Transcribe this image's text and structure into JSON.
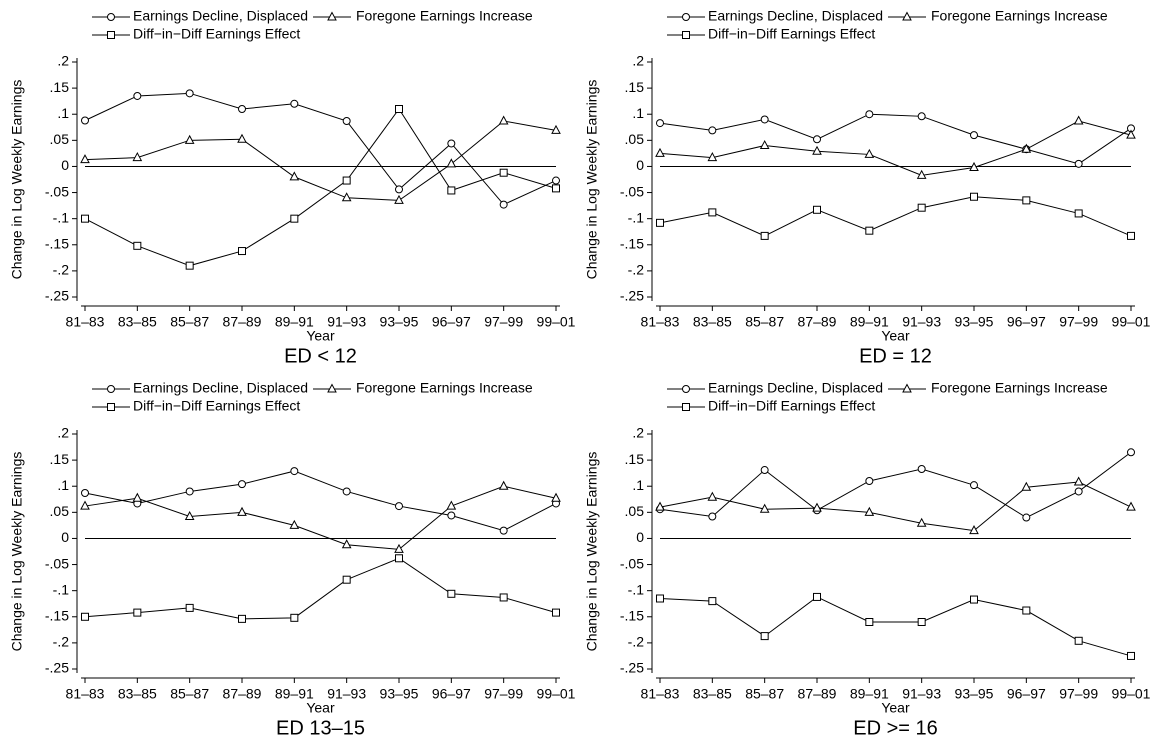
{
  "chart_data": [
    {
      "type": "line",
      "title": "ED < 12",
      "xlabel": "Year",
      "ylabel": "Change in Log Weekly Earnings",
      "categories": [
        "81–83",
        "83–85",
        "85–87",
        "87–89",
        "89–91",
        "91–93",
        "93–95",
        "96–97",
        "97–99",
        "99–01"
      ],
      "ylim": [
        -0.25,
        0.2
      ],
      "yticks": [
        {
          "value": 0.2,
          "label": ".2"
        },
        {
          "value": 0.15,
          "label": ".15"
        },
        {
          "value": 0.1,
          "label": ".1"
        },
        {
          "value": 0.05,
          "label": ".05"
        },
        0,
        {
          "value": -0.05,
          "label": "-.05"
        },
        {
          "value": -0.1,
          "label": "-.1"
        },
        {
          "value": -0.15,
          "label": "-.15"
        },
        {
          "value": -0.2,
          "label": "-.2"
        },
        {
          "value": -0.25,
          "label": "-.25"
        }
      ],
      "reference_line": 0,
      "series": [
        {
          "name": "Earnings Decline, Displaced",
          "color": "#000000",
          "marker": "circle",
          "values": [
            0.088,
            0.135,
            0.14,
            0.11,
            0.12,
            0.087,
            -0.044,
            0.044,
            -0.073,
            -0.027
          ]
        },
        {
          "name": "Foregone Earnings Increase",
          "color": "#000000",
          "marker": "triangle",
          "values": [
            0.013,
            0.017,
            0.05,
            0.052,
            -0.02,
            -0.06,
            -0.065,
            0.005,
            0.087,
            0.069
          ]
        },
        {
          "name": "Diff−in−Diff Earnings Effect",
          "color": "#000000",
          "marker": "square",
          "values": [
            -0.1,
            -0.152,
            -0.19,
            -0.162,
            -0.1,
            -0.027,
            0.11,
            -0.046,
            -0.012,
            -0.042
          ]
        }
      ]
    },
    {
      "type": "line",
      "title": "ED = 12",
      "xlabel": "Year",
      "ylabel": "Change in Log Weekly Earnings",
      "categories": [
        "81–83",
        "83–85",
        "85–87",
        "87–89",
        "89–91",
        "91–93",
        "93–95",
        "96–97",
        "97–99",
        "99–01"
      ],
      "ylim": [
        -0.25,
        0.2
      ],
      "yticks": [
        {
          "value": 0.2,
          "label": ".2"
        },
        {
          "value": 0.15,
          "label": ".15"
        },
        {
          "value": 0.1,
          "label": ".1"
        },
        {
          "value": 0.05,
          "label": ".05"
        },
        0,
        {
          "value": -0.05,
          "label": "-.05"
        },
        {
          "value": -0.1,
          "label": "-.1"
        },
        {
          "value": -0.15,
          "label": "-.15"
        },
        {
          "value": -0.2,
          "label": "-.2"
        },
        {
          "value": -0.25,
          "label": "-.25"
        }
      ],
      "reference_line": 0,
      "series": [
        {
          "name": "Earnings Decline, Displaced",
          "color": "#000000",
          "marker": "circle",
          "values": [
            0.083,
            0.069,
            0.09,
            0.052,
            0.1,
            0.096,
            0.06,
            0.033,
            0.005,
            0.073
          ]
        },
        {
          "name": "Foregone Earnings Increase",
          "color": "#000000",
          "marker": "triangle",
          "values": [
            0.025,
            0.017,
            0.04,
            0.029,
            0.023,
            -0.017,
            -0.002,
            0.033,
            0.087,
            0.06
          ]
        },
        {
          "name": "Diff−in−Diff Earnings Effect",
          "color": "#000000",
          "marker": "square",
          "values": [
            -0.108,
            -0.088,
            -0.133,
            -0.083,
            -0.123,
            -0.079,
            -0.058,
            -0.065,
            -0.09,
            -0.133
          ]
        }
      ]
    },
    {
      "type": "line",
      "title": "ED 13–15",
      "xlabel": "Year",
      "ylabel": "Change in Log Weekly Earnings",
      "categories": [
        "81–83",
        "83–85",
        "85–87",
        "87–89",
        "89–91",
        "91–93",
        "93–95",
        "96–97",
        "97–99",
        "99–01"
      ],
      "ylim": [
        -0.25,
        0.2
      ],
      "yticks": [
        {
          "value": 0.2,
          "label": ".2"
        },
        {
          "value": 0.15,
          "label": ".15"
        },
        {
          "value": 0.1,
          "label": ".1"
        },
        {
          "value": 0.05,
          "label": ".05"
        },
        0,
        {
          "value": -0.05,
          "label": "-.05"
        },
        {
          "value": -0.1,
          "label": "-.1"
        },
        {
          "value": -0.15,
          "label": "-.15"
        },
        {
          "value": -0.2,
          "label": "-.2"
        },
        {
          "value": -0.25,
          "label": "-.25"
        }
      ],
      "reference_line": 0,
      "series": [
        {
          "name": "Earnings Decline, Displaced",
          "color": "#000000",
          "marker": "circle",
          "values": [
            0.087,
            0.067,
            0.09,
            0.104,
            0.129,
            0.09,
            0.062,
            0.044,
            0.015,
            0.067
          ]
        },
        {
          "name": "Foregone Earnings Increase",
          "color": "#000000",
          "marker": "triangle",
          "values": [
            0.062,
            0.077,
            0.042,
            0.05,
            0.025,
            -0.012,
            -0.021,
            0.062,
            0.1,
            0.077
          ]
        },
        {
          "name": "Diff−in−Diff Earnings Effect",
          "color": "#000000",
          "marker": "square",
          "values": [
            -0.15,
            -0.142,
            -0.133,
            -0.154,
            -0.152,
            -0.079,
            -0.038,
            -0.106,
            -0.113,
            -0.142
          ]
        }
      ]
    },
    {
      "type": "line",
      "title": "ED >= 16",
      "xlabel": "Year",
      "ylabel": "Change in Log Weekly Earnings",
      "categories": [
        "81–83",
        "83–85",
        "85–87",
        "87–89",
        "89–91",
        "91–93",
        "93–95",
        "96–97",
        "97–99",
        "99–01"
      ],
      "ylim": [
        -0.25,
        0.2
      ],
      "yticks": [
        {
          "value": 0.2,
          "label": ".2"
        },
        {
          "value": 0.15,
          "label": ".15"
        },
        {
          "value": 0.1,
          "label": ".1"
        },
        {
          "value": 0.05,
          "label": ".05"
        },
        0,
        {
          "value": -0.05,
          "label": "-.05"
        },
        {
          "value": -0.1,
          "label": "-.1"
        },
        {
          "value": -0.15,
          "label": "-.15"
        },
        {
          "value": -0.2,
          "label": "-.2"
        },
        {
          "value": -0.25,
          "label": "-.25"
        }
      ],
      "reference_line": 0,
      "series": [
        {
          "name": "Earnings Decline, Displaced",
          "color": "#000000",
          "marker": "circle",
          "values": [
            0.056,
            0.042,
            0.131,
            0.054,
            0.11,
            0.133,
            0.102,
            0.04,
            0.09,
            0.165
          ]
        },
        {
          "name": "Foregone Earnings Increase",
          "color": "#000000",
          "marker": "triangle",
          "values": [
            0.06,
            0.079,
            0.056,
            0.058,
            0.05,
            0.029,
            0.015,
            0.098,
            0.108,
            0.06
          ]
        },
        {
          "name": "Diff−in−Diff Earnings Effect",
          "color": "#000000",
          "marker": "square",
          "values": [
            -0.115,
            -0.12,
            -0.187,
            -0.112,
            -0.16,
            -0.16,
            -0.117,
            -0.138,
            -0.196,
            -0.225
          ]
        }
      ]
    }
  ]
}
